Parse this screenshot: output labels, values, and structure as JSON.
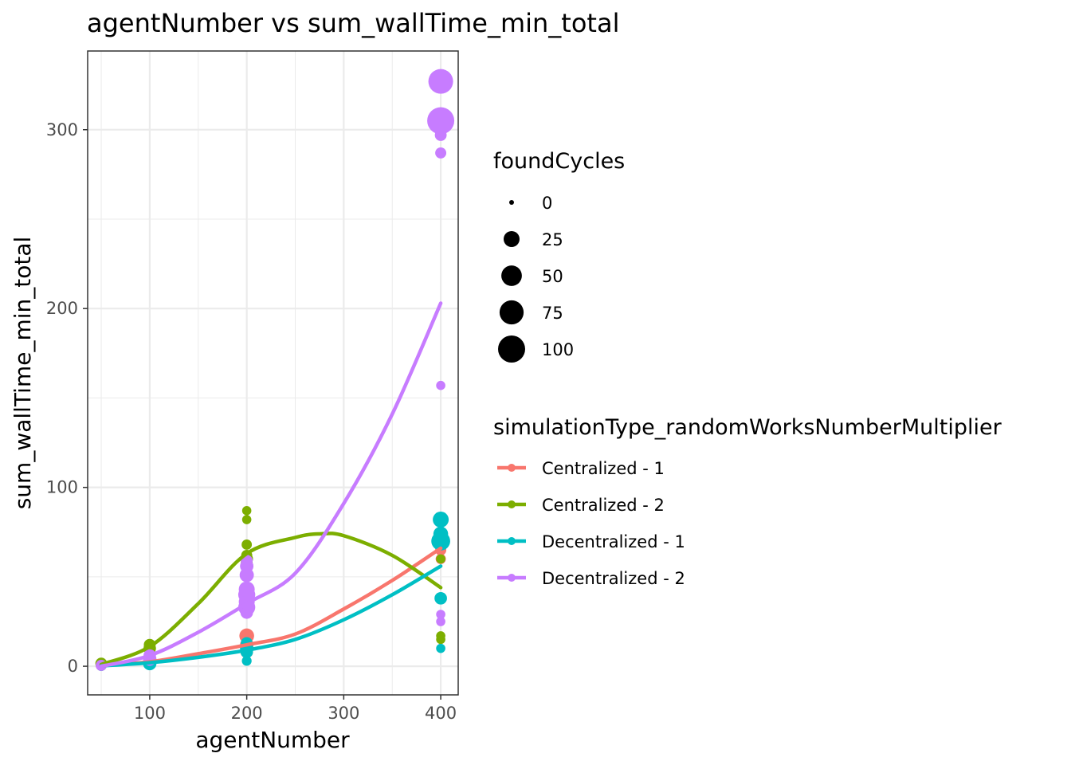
{
  "chart_data": {
    "type": "scatter",
    "title": "agentNumber  vs  sum_wallTime_min_total",
    "xlabel": "agentNumber",
    "ylabel": "sum_wallTime_min_total",
    "xlim": [
      36,
      418
    ],
    "ylim": [
      -16,
      344
    ],
    "x_ticks": [
      100,
      200,
      300,
      400
    ],
    "x_tick_labels": [
      "100",
      "200",
      "300",
      "400"
    ],
    "y_ticks": [
      0,
      100,
      200,
      300
    ],
    "y_tick_labels": [
      "0",
      "100",
      "200",
      "300"
    ],
    "grid": true,
    "size_legend": {
      "title": "foundCycles",
      "entries": [
        {
          "label": "0",
          "value": 0
        },
        {
          "label": "25",
          "value": 25
        },
        {
          "label": "50",
          "value": 50
        },
        {
          "label": "75",
          "value": 75
        },
        {
          "label": "100",
          "value": 100
        }
      ]
    },
    "color_legend": {
      "title": "simulationType_randomWorksNumberMultiplier",
      "placement": "right"
    },
    "series": [
      {
        "name": "Centralized - 1",
        "color": "#F8766D",
        "points": [
          {
            "x": 50,
            "y": 0.5,
            "size": 8
          },
          {
            "x": 100,
            "y": 2,
            "size": 10
          },
          {
            "x": 200,
            "y": 8,
            "size": 12
          },
          {
            "x": 200,
            "y": 12,
            "size": 15
          },
          {
            "x": 200,
            "y": 17,
            "size": 20
          },
          {
            "x": 400,
            "y": 60,
            "size": 6
          },
          {
            "x": 400,
            "y": 65,
            "size": 8
          },
          {
            "x": 400,
            "y": 81,
            "size": 5
          }
        ],
        "smooth": [
          [
            50,
            0.5
          ],
          [
            100,
            2.5
          ],
          [
            150,
            7
          ],
          [
            200,
            12
          ],
          [
            250,
            18
          ],
          [
            300,
            32
          ],
          [
            350,
            48
          ],
          [
            400,
            66
          ]
        ]
      },
      {
        "name": "Centralized - 2",
        "color": "#7CAE00",
        "points": [
          {
            "x": 50,
            "y": 1.5,
            "size": 10
          },
          {
            "x": 100,
            "y": 10,
            "size": 12
          },
          {
            "x": 100,
            "y": 12,
            "size": 10
          },
          {
            "x": 200,
            "y": 55,
            "size": 8
          },
          {
            "x": 200,
            "y": 58,
            "size": 10
          },
          {
            "x": 200,
            "y": 60,
            "size": 12
          },
          {
            "x": 200,
            "y": 62,
            "size": 8
          },
          {
            "x": 200,
            "y": 68,
            "size": 6
          },
          {
            "x": 200,
            "y": 82,
            "size": 4
          },
          {
            "x": 200,
            "y": 87,
            "size": 4
          },
          {
            "x": 400,
            "y": 15,
            "size": 4
          },
          {
            "x": 400,
            "y": 17,
            "size": 4
          },
          {
            "x": 400,
            "y": 60,
            "size": 4
          },
          {
            "x": 400,
            "y": 70,
            "size": 8
          },
          {
            "x": 400,
            "y": 72,
            "size": 6
          }
        ],
        "smooth": [
          [
            50,
            1
          ],
          [
            100,
            11
          ],
          [
            150,
            35
          ],
          [
            200,
            63
          ],
          [
            250,
            72
          ],
          [
            275,
            74
          ],
          [
            300,
            73
          ],
          [
            350,
            62
          ],
          [
            400,
            44
          ]
        ]
      },
      {
        "name": "Decentralized - 1",
        "color": "#00BFC4",
        "points": [
          {
            "x": 50,
            "y": 0.2,
            "size": 6
          },
          {
            "x": 100,
            "y": 1.5,
            "size": 15
          },
          {
            "x": 200,
            "y": 3,
            "size": 5
          },
          {
            "x": 200,
            "y": 8,
            "size": 12
          },
          {
            "x": 200,
            "y": 10,
            "size": 15
          },
          {
            "x": 200,
            "y": 13,
            "size": 10
          },
          {
            "x": 400,
            "y": 10,
            "size": 4
          },
          {
            "x": 400,
            "y": 38,
            "size": 12
          },
          {
            "x": 400,
            "y": 70,
            "size": 40
          },
          {
            "x": 400,
            "y": 74,
            "size": 20
          },
          {
            "x": 400,
            "y": 82,
            "size": 25
          }
        ],
        "smooth": [
          [
            50,
            0.2
          ],
          [
            100,
            2
          ],
          [
            150,
            5
          ],
          [
            200,
            9
          ],
          [
            250,
            15
          ],
          [
            300,
            26
          ],
          [
            350,
            40
          ],
          [
            400,
            56
          ]
        ]
      },
      {
        "name": "Decentralized - 2",
        "color": "#C77CFF",
        "points": [
          {
            "x": 50,
            "y": 0.5,
            "size": 8
          },
          {
            "x": 100,
            "y": 4,
            "size": 15
          },
          {
            "x": 100,
            "y": 6,
            "size": 12
          },
          {
            "x": 200,
            "y": 30,
            "size": 12
          },
          {
            "x": 200,
            "y": 33,
            "size": 30
          },
          {
            "x": 200,
            "y": 36,
            "size": 25
          },
          {
            "x": 200,
            "y": 40,
            "size": 30
          },
          {
            "x": 200,
            "y": 43,
            "size": 25
          },
          {
            "x": 200,
            "y": 51,
            "size": 18
          },
          {
            "x": 200,
            "y": 56,
            "size": 15
          },
          {
            "x": 200,
            "y": 59,
            "size": 10
          },
          {
            "x": 400,
            "y": 25,
            "size": 4
          },
          {
            "x": 400,
            "y": 29,
            "size": 4
          },
          {
            "x": 400,
            "y": 157,
            "size": 4
          },
          {
            "x": 400,
            "y": 287,
            "size": 8
          },
          {
            "x": 400,
            "y": 297,
            "size": 10
          },
          {
            "x": 400,
            "y": 305,
            "size": 100
          },
          {
            "x": 400,
            "y": 327,
            "size": 80
          }
        ],
        "smooth": [
          [
            50,
            0
          ],
          [
            100,
            6
          ],
          [
            150,
            19
          ],
          [
            200,
            35
          ],
          [
            250,
            52
          ],
          [
            300,
            91
          ],
          [
            350,
            141
          ],
          [
            400,
            203
          ]
        ]
      }
    ]
  }
}
